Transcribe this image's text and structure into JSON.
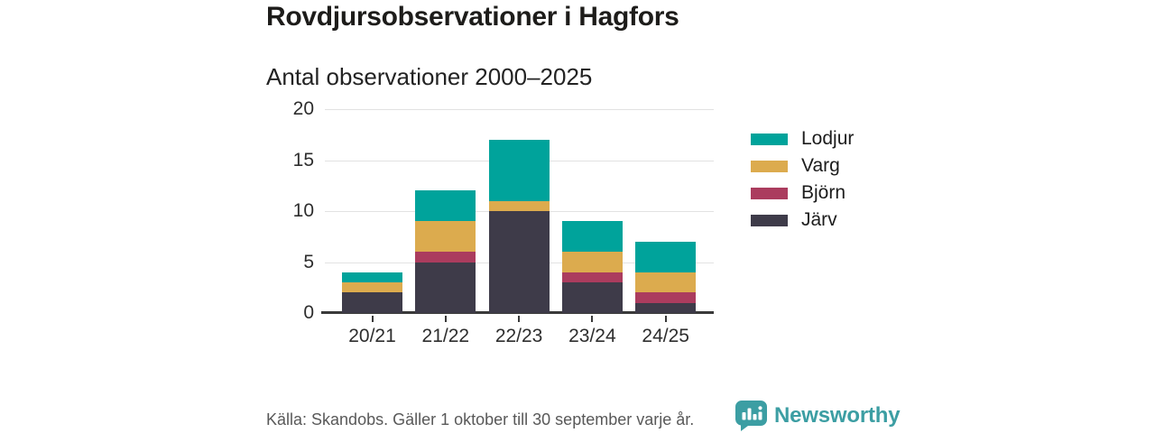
{
  "header": {
    "title": "Rovdjursobservationer i Hagfors",
    "subtitle": "Antal observationer 2000–2025"
  },
  "chart_data": {
    "type": "bar",
    "stacked": true,
    "title": "Rovdjursobservationer i Hagfors",
    "subtitle": "Antal observationer 2000–2025",
    "categories": [
      "20/21",
      "21/22",
      "22/23",
      "23/24",
      "24/25"
    ],
    "series": [
      {
        "name": "Järv",
        "color": "#3e3b49",
        "values": [
          2,
          5,
          10,
          3,
          1
        ]
      },
      {
        "name": "Björn",
        "color": "#ab3c5e",
        "values": [
          0,
          1,
          0,
          1,
          1
        ]
      },
      {
        "name": "Varg",
        "color": "#dcab4e",
        "values": [
          1,
          3,
          1,
          2,
          2
        ]
      },
      {
        "name": "Lodjur",
        "color": "#00a39b",
        "values": [
          1,
          3,
          6,
          3,
          3
        ]
      }
    ],
    "totals": [
      4,
      12,
      17,
      9,
      7
    ],
    "legend_order": [
      "Lodjur",
      "Varg",
      "Björn",
      "Järv"
    ],
    "legend_position": "right",
    "yticks": [
      0,
      5,
      10,
      15,
      20
    ],
    "ylim": [
      0,
      20
    ],
    "grid": "horizontal"
  },
  "footer": {
    "source": "Källa: Skandobs. Gäller 1 oktober till 30 september varje år.",
    "brand": "Newsworthy"
  },
  "colors": {
    "axis": "#3a3a3a",
    "grid": "#e2e2e2",
    "brand_teal": "#3c9ea3"
  }
}
